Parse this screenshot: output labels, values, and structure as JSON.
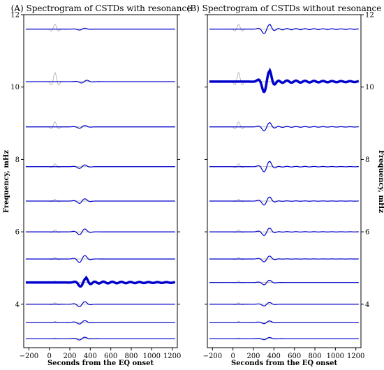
{
  "chart_data": [
    {
      "type": "line",
      "title": "(A) Spectrogram of CSTDs with resonance",
      "xlabel": "Seconds from the EQ onset",
      "ylabel": "Frequency, mHz",
      "xlim": [
        -250,
        1250
      ],
      "ylim": [
        2.8,
        12.0
      ],
      "xticks": [
        "−200",
        "0",
        "200",
        "400",
        "600",
        "800",
        "1000",
        "1200"
      ],
      "yticks": [
        "4",
        "6",
        "8",
        "10",
        "12"
      ],
      "ytick_side": "left",
      "grid": false,
      "series": [
        {
          "freq": 11.6,
          "gray_amp": 0.35,
          "blue_amp": 0.08,
          "blue_center": 320,
          "width": 1.2,
          "ringing": 0
        },
        {
          "freq": 10.15,
          "gray_amp": 0.65,
          "blue_amp": 0.12,
          "blue_center": 340,
          "width": 1.2,
          "ringing": 0
        },
        {
          "freq": 8.9,
          "gray_amp": 0.35,
          "blue_amp": 0.12,
          "blue_center": 320,
          "width": 1.2,
          "ringing": 0
        },
        {
          "freq": 7.8,
          "gray_amp": 0.2,
          "blue_amp": 0.15,
          "blue_center": 320,
          "width": 1.2,
          "ringing": 0
        },
        {
          "freq": 6.85,
          "gray_amp": 0.12,
          "blue_amp": 0.2,
          "blue_center": 320,
          "width": 1.2,
          "ringing": 0
        },
        {
          "freq": 6.0,
          "gray_amp": 0.12,
          "blue_amp": 0.25,
          "blue_center": 320,
          "width": 1.2,
          "ringing": 0
        },
        {
          "freq": 5.25,
          "gray_amp": 0.12,
          "blue_amp": 0.3,
          "blue_center": 320,
          "width": 1.2,
          "ringing": 0
        },
        {
          "freq": 4.6,
          "gray_amp": 0.1,
          "blue_amp": 0.35,
          "blue_center": 330,
          "width": 3.5,
          "ringing": 0.08
        },
        {
          "freq": 4.0,
          "gray_amp": 0.1,
          "blue_amp": 0.22,
          "blue_center": 320,
          "width": 1.2,
          "ringing": 0
        },
        {
          "freq": 3.5,
          "gray_amp": 0.06,
          "blue_amp": 0.15,
          "blue_center": 320,
          "width": 1.2,
          "ringing": 0
        },
        {
          "freq": 3.05,
          "gray_amp": 0.04,
          "blue_amp": 0.12,
          "blue_center": 320,
          "width": 1.2,
          "ringing": 0
        }
      ]
    },
    {
      "type": "line",
      "title": "(B) Spectrogram of CSTDs without resonance",
      "xlabel": "Seconds from the EQ onset",
      "ylabel": "Frequency, mHz",
      "xlim": [
        -250,
        1250
      ],
      "ylim": [
        2.8,
        12.0
      ],
      "xticks": [
        "−200",
        "0",
        "200",
        "400",
        "600",
        "800",
        "1000",
        "1200"
      ],
      "yticks": [
        "4",
        "6",
        "8",
        "10",
        "12"
      ],
      "ytick_side": "right",
      "grid": false,
      "series": [
        {
          "freq": 11.6,
          "gray_amp": 0.35,
          "blue_amp": 0.38,
          "blue_center": 330,
          "width": 1.2,
          "ringing": 0.06
        },
        {
          "freq": 10.15,
          "gray_amp": 0.65,
          "blue_amp": 0.9,
          "blue_center": 330,
          "width": 3.5,
          "ringing": 0.1
        },
        {
          "freq": 8.9,
          "gray_amp": 0.35,
          "blue_amp": 0.35,
          "blue_center": 330,
          "width": 1.2,
          "ringing": 0.04
        },
        {
          "freq": 7.8,
          "gray_amp": 0.2,
          "blue_amp": 0.45,
          "blue_center": 330,
          "width": 1.2,
          "ringing": 0.03
        },
        {
          "freq": 6.85,
          "gray_amp": 0.12,
          "blue_amp": 0.35,
          "blue_center": 330,
          "width": 1.2,
          "ringing": 0.02
        },
        {
          "freq": 6.0,
          "gray_amp": 0.12,
          "blue_amp": 0.32,
          "blue_center": 330,
          "width": 1.2,
          "ringing": 0.02
        },
        {
          "freq": 5.25,
          "gray_amp": 0.12,
          "blue_amp": 0.25,
          "blue_center": 330,
          "width": 1.2,
          "ringing": 0.01
        },
        {
          "freq": 4.6,
          "gray_amp": 0.1,
          "blue_amp": 0.2,
          "blue_center": 330,
          "width": 1.2,
          "ringing": 0
        },
        {
          "freq": 4.0,
          "gray_amp": 0.1,
          "blue_amp": 0.15,
          "blue_center": 330,
          "width": 1.2,
          "ringing": 0
        },
        {
          "freq": 3.5,
          "gray_amp": 0.06,
          "blue_amp": 0.12,
          "blue_center": 330,
          "width": 1.2,
          "ringing": 0
        },
        {
          "freq": 3.05,
          "gray_amp": 0.04,
          "blue_amp": 0.1,
          "blue_center": 330,
          "width": 1.2,
          "ringing": 0
        }
      ]
    }
  ],
  "colors": {
    "blue_trace": "#0000cc",
    "gray_trace": "#a8a8a8",
    "frame": "#000000"
  }
}
